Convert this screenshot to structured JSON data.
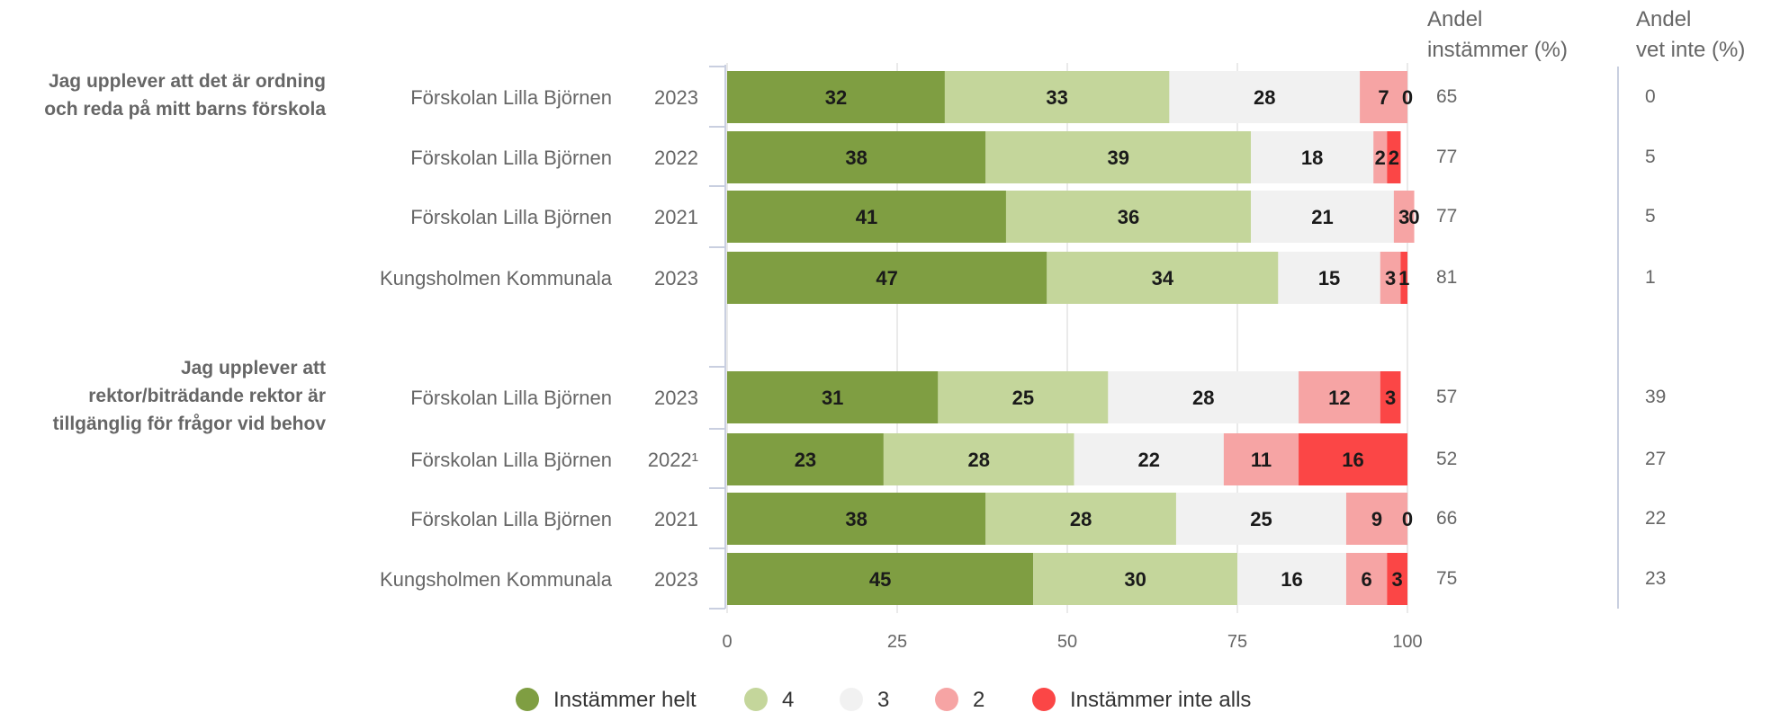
{
  "chart_data": {
    "type": "bar",
    "stacked": "horizontal",
    "xlim": [
      0,
      100
    ],
    "x_ticks": [
      "0",
      "25",
      "50",
      "75",
      "100"
    ],
    "grid": true,
    "legend_placement": "bottom",
    "column_headers": [
      {
        "line1": "Andel",
        "line2": "instämmer (%)"
      },
      {
        "line1": "Andel",
        "line2": "vet inte (%)"
      }
    ],
    "colors": [
      "#7f9e42",
      "#c4d69b",
      "#f1f1f1",
      "#f6a4a4",
      "#fb4646"
    ],
    "legend": [
      "Instämmer helt",
      "4",
      "3",
      "2",
      "Instämmer inte alls"
    ],
    "groups": [
      {
        "question_lines": [
          "Jag upplever att det är ordning",
          "och reda på mitt barns förskola"
        ],
        "rows": [
          {
            "label": "Förskolan Lilla Björnen",
            "year": "2023",
            "values": [
              32,
              33,
              28,
              7,
              0
            ],
            "andel_instammer": "65",
            "andel_vet_inte": "0"
          },
          {
            "label": "Förskolan Lilla Björnen",
            "year": "2022",
            "values": [
              38,
              39,
              18,
              2,
              2
            ],
            "andel_instammer": "77",
            "andel_vet_inte": "5"
          },
          {
            "label": "Förskolan Lilla Björnen",
            "year": "2021",
            "values": [
              41,
              36,
              21,
              3,
              0
            ],
            "andel_instammer": "77",
            "andel_vet_inte": "5"
          },
          {
            "label": "Kungsholmen Kommunala",
            "year": "2023",
            "values": [
              47,
              34,
              15,
              3,
              1
            ],
            "andel_instammer": "81",
            "andel_vet_inte": "1"
          }
        ]
      },
      {
        "question_lines": [
          "Jag upplever att",
          "rektor/biträdande rektor är",
          "tillgänglig för frågor vid behov"
        ],
        "rows": [
          {
            "label": "Förskolan Lilla Björnen",
            "year": "2023",
            "values": [
              31,
              25,
              28,
              12,
              3
            ],
            "andel_instammer": "57",
            "andel_vet_inte": "39"
          },
          {
            "label": "Förskolan Lilla Björnen",
            "year": "2022¹",
            "values": [
              23,
              28,
              22,
              11,
              16
            ],
            "andel_instammer": "52",
            "andel_vet_inte": "27"
          },
          {
            "label": "Förskolan Lilla Björnen",
            "year": "2021",
            "values": [
              38,
              28,
              25,
              9,
              0
            ],
            "andel_instammer": "66",
            "andel_vet_inte": "22"
          },
          {
            "label": "Kungsholmen Kommunala",
            "year": "2023",
            "values": [
              45,
              30,
              16,
              6,
              3
            ],
            "andel_instammer": "75",
            "andel_vet_inte": "23"
          }
        ]
      }
    ]
  }
}
